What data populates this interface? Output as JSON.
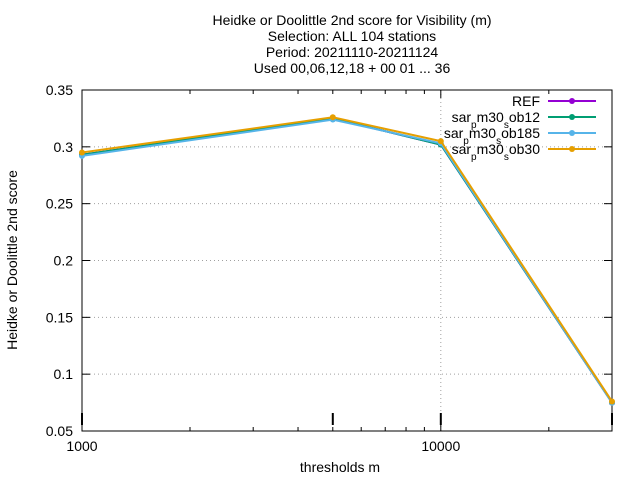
{
  "chart_data": {
    "type": "line",
    "title_lines": [
      "Heidke or Doolittle 2nd score  for Visibility (m)",
      "Selection: ALL     104 stations",
      "Period: 20211110-20211124",
      "Used 00,06,12,18 + 00 01 ... 36"
    ],
    "xlabel": "thresholds m",
    "ylabel": "Heidke or Doolittle 2nd score",
    "x_scale": "log",
    "xlim": [
      1000,
      30000
    ],
    "ylim": [
      0.05,
      0.35
    ],
    "x_ticks": [
      {
        "value": 1000,
        "label": "1000"
      },
      {
        "value": 10000,
        "label": "10000"
      }
    ],
    "y_ticks": [
      {
        "value": 0.05,
        "label": "0.05"
      },
      {
        "value": 0.1,
        "label": "0.1"
      },
      {
        "value": 0.15,
        "label": "0.15"
      },
      {
        "value": 0.2,
        "label": "0.2"
      },
      {
        "value": 0.25,
        "label": "0.25"
      },
      {
        "value": 0.3,
        "label": "0.3"
      },
      {
        "value": 0.35,
        "label": "0.35"
      }
    ],
    "grid": true,
    "legend_position": "top-right",
    "x": [
      1000,
      5000,
      10000,
      30000
    ],
    "series": [
      {
        "name": "REF",
        "legend_label": {
          "main": "REF",
          "segments": []
        },
        "color": "#9400d3",
        "values": [
          0.293,
          0.325,
          0.302,
          0.075
        ]
      },
      {
        "name": "sar_pm30_sob12",
        "legend_label": {
          "segments": [
            {
              "t": "sar",
              "sub": false
            },
            {
              "t": "p",
              "sub": true
            },
            {
              "t": "m30",
              "sub": false
            },
            {
              "t": "s",
              "sub": true
            },
            {
              "t": "ob12",
              "sub": false
            }
          ]
        },
        "color": "#009e73",
        "values": [
          0.293,
          0.325,
          0.302,
          0.075
        ]
      },
      {
        "name": "sar_pm30_sob185",
        "legend_label": {
          "segments": [
            {
              "t": "sar",
              "sub": false
            },
            {
              "t": "p",
              "sub": true
            },
            {
              "t": "m30",
              "sub": false
            },
            {
              "t": "s",
              "sub": true
            },
            {
              "t": "ob185",
              "sub": false
            }
          ]
        },
        "color": "#56b4e9",
        "values": [
          0.292,
          0.324,
          0.303,
          0.075
        ]
      },
      {
        "name": "sar_pm30_sob30",
        "legend_label": {
          "segments": [
            {
              "t": "sar",
              "sub": false
            },
            {
              "t": "p",
              "sub": true
            },
            {
              "t": "m30",
              "sub": false
            },
            {
              "t": "s",
              "sub": true
            },
            {
              "t": "ob30",
              "sub": false
            }
          ]
        },
        "color": "#e69f00",
        "values": [
          0.295,
          0.326,
          0.305,
          0.076
        ]
      }
    ]
  }
}
